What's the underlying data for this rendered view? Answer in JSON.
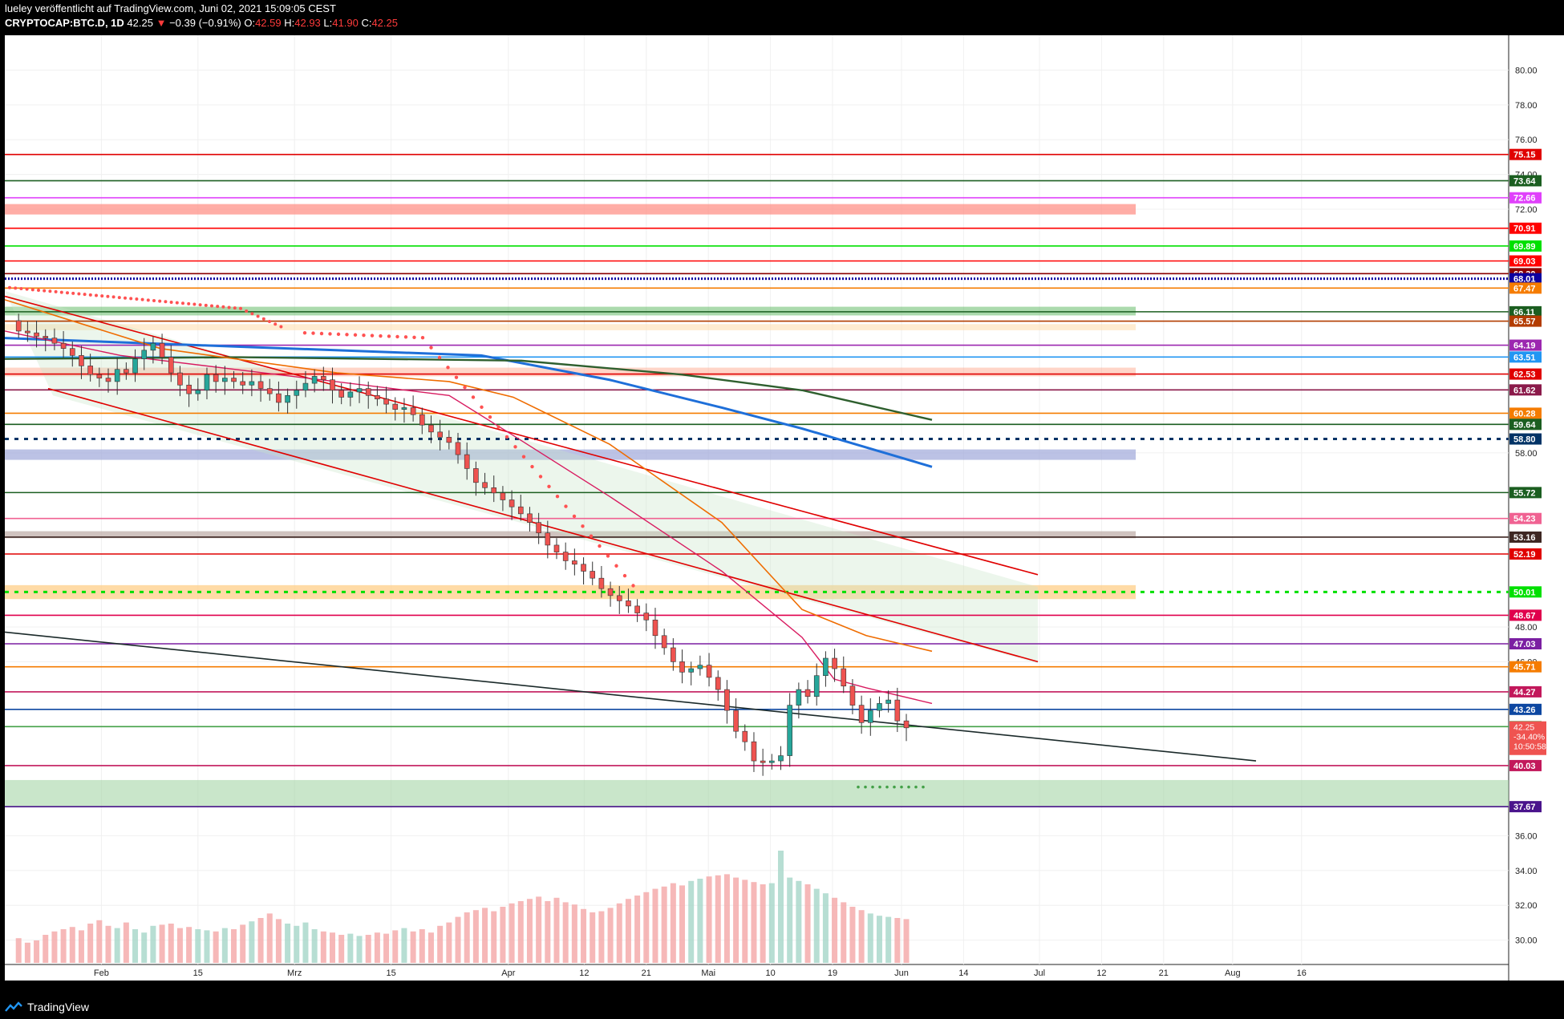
{
  "header": {
    "line1": "lueley veröffentlicht auf TradingView.com, Juni 02, 2021 15:09:05 CEST",
    "symbol": "CRYPTOCAP:BTC.D, 1D",
    "last": "42.25",
    "change": "−0.39 (−0.91%)",
    "o_label": "O:",
    "o": "42.59",
    "h_label": "H:",
    "h": "42.93",
    "l_label": "L:",
    "l": "41.90",
    "c_label": "C:",
    "c": "42.25"
  },
  "footer": {
    "brand": "TradingView",
    "logo_icon": "tradingview-logo-icon"
  },
  "chart_data": {
    "type": "candlestick",
    "ylim": [
      28.6,
      82.0
    ],
    "y_ticks": [
      "80.00",
      "78.00",
      "76.00",
      "74.00",
      "72.00",
      "58.00",
      "48.00",
      "46.00",
      "36.00",
      "34.00",
      "32.00",
      "30.00"
    ],
    "x_ticks": [
      "Feb",
      "15",
      "Mrz",
      "15",
      "Apr",
      "12",
      "21",
      "Mai",
      "10",
      "19",
      "Jun",
      "14",
      "Jul",
      "12",
      "21",
      "Aug",
      "16"
    ],
    "x_ticks_day": [
      32,
      46,
      60,
      74,
      91,
      102,
      111,
      120,
      129,
      138,
      148,
      157,
      168,
      177,
      186,
      196,
      206
    ],
    "levels": [
      {
        "label": "75.15",
        "value": 75.15,
        "color": "#e00000"
      },
      {
        "label": "73.64",
        "value": 73.64,
        "color": "#1b5e20"
      },
      {
        "label": "72.66",
        "value": 72.66,
        "color": "#e040fb"
      },
      {
        "label": "70.91",
        "value": 70.91,
        "color": "#ff0000"
      },
      {
        "label": "69.89",
        "value": 69.89,
        "color": "#00e000"
      },
      {
        "label": "69.03",
        "value": 69.03,
        "color": "#ff0000"
      },
      {
        "label": "68.30",
        "value": 68.3,
        "color": "#8b0000"
      },
      {
        "label": "68.01",
        "value": 68.01,
        "color": "#0d00a0"
      },
      {
        "label": "67.47",
        "value": 67.47,
        "color": "#f57c00"
      },
      {
        "label": "66.11",
        "value": 66.11,
        "color": "#1b5e20"
      },
      {
        "label": "65.57",
        "value": 65.57,
        "color": "#b33c00"
      },
      {
        "label": "64.19",
        "value": 64.19,
        "color": "#9c27b0"
      },
      {
        "label": "63.51",
        "value": 63.51,
        "color": "#2196f3"
      },
      {
        "label": "62.53",
        "value": 62.53,
        "color": "#e00000"
      },
      {
        "label": "61.62",
        "value": 61.62,
        "color": "#8b1a4a"
      },
      {
        "label": "60.28",
        "value": 60.28,
        "color": "#f57c00"
      },
      {
        "label": "59.64",
        "value": 59.64,
        "color": "#1b5e20"
      },
      {
        "label": "58.80",
        "value": 58.8,
        "color": "#003366"
      },
      {
        "label": "55.72",
        "value": 55.72,
        "color": "#1b5e20"
      },
      {
        "label": "54.23",
        "value": 54.23,
        "color": "#f06292"
      },
      {
        "label": "53.16",
        "value": 53.16,
        "color": "#3e2723"
      },
      {
        "label": "52.19",
        "value": 52.19,
        "color": "#e00000"
      },
      {
        "label": "50.01",
        "value": 50.01,
        "color": "#00e000"
      },
      {
        "label": "48.67",
        "value": 48.67,
        "color": "#e0004d"
      },
      {
        "label": "47.03",
        "value": 47.03,
        "color": "#7b1fa2"
      },
      {
        "label": "45.71",
        "value": 45.71,
        "color": "#f57c00"
      },
      {
        "label": "44.27",
        "value": 44.27,
        "color": "#c2185b"
      },
      {
        "label": "43.26",
        "value": 43.26,
        "color": "#0d47a1"
      },
      {
        "label": "42.27",
        "value": 42.27,
        "color": "#43a047"
      },
      {
        "label": "40.03",
        "value": 40.03,
        "color": "#c2185b"
      },
      {
        "label": "37.67",
        "value": 37.67,
        "color": "#4a148c"
      }
    ],
    "price_badge": {
      "value": "42.25",
      "change": "-34.40%",
      "time": "10:50:58",
      "color": "#ef5350"
    },
    "closes": [
      65.0,
      64.9,
      64.7,
      64.6,
      64.3,
      64.0,
      63.6,
      63.0,
      62.5,
      62.3,
      62.1,
      62.8,
      62.6,
      63.4,
      63.9,
      64.3,
      63.5,
      62.6,
      61.9,
      61.4,
      61.6,
      62.5,
      62.1,
      62.3,
      62.1,
      61.9,
      62.1,
      61.7,
      61.4,
      60.9,
      61.3,
      61.6,
      62.0,
      62.4,
      62.2,
      61.6,
      61.2,
      61.5,
      61.7,
      61.3,
      61.1,
      60.8,
      60.5,
      60.6,
      60.2,
      59.6,
      59.2,
      58.9,
      58.6,
      57.9,
      57.1,
      56.3,
      56.0,
      55.7,
      55.3,
      54.9,
      54.5,
      54.0,
      53.4,
      52.7,
      52.3,
      51.8,
      51.6,
      51.2,
      50.8,
      50.2,
      49.8,
      49.5,
      49.2,
      48.8,
      48.4,
      47.5,
      46.8,
      46.0,
      45.4,
      45.6,
      45.8,
      45.1,
      44.4,
      43.2,
      42.0,
      41.4,
      40.3,
      40.2,
      40.3,
      40.6,
      43.5,
      44.4,
      44.0,
      45.2,
      46.2,
      45.6,
      44.6,
      43.5,
      42.5,
      43.2,
      43.6,
      43.8,
      42.6,
      42.2
    ],
    "volume_pct": [
      22,
      18,
      20,
      25,
      28,
      30,
      32,
      29,
      35,
      38,
      33,
      31,
      36,
      30,
      27,
      33,
      34,
      35,
      31,
      32,
      30,
      29,
      28,
      31,
      30,
      34,
      37,
      40,
      44,
      39,
      35,
      33,
      36,
      30,
      28,
      27,
      25,
      26,
      24,
      25,
      27,
      26,
      29,
      31,
      28,
      30,
      27,
      33,
      36,
      41,
      45,
      47,
      49,
      46,
      50,
      53,
      55,
      57,
      59,
      55,
      58,
      54,
      52,
      48,
      45,
      46,
      49,
      53,
      57,
      60,
      63,
      66,
      68,
      71,
      69,
      73,
      75,
      77,
      78,
      79,
      76,
      74,
      72,
      70,
      71,
      100,
      76,
      73,
      70,
      66,
      62,
      58,
      54,
      50,
      47,
      44,
      42,
      41,
      40,
      39
    ]
  }
}
